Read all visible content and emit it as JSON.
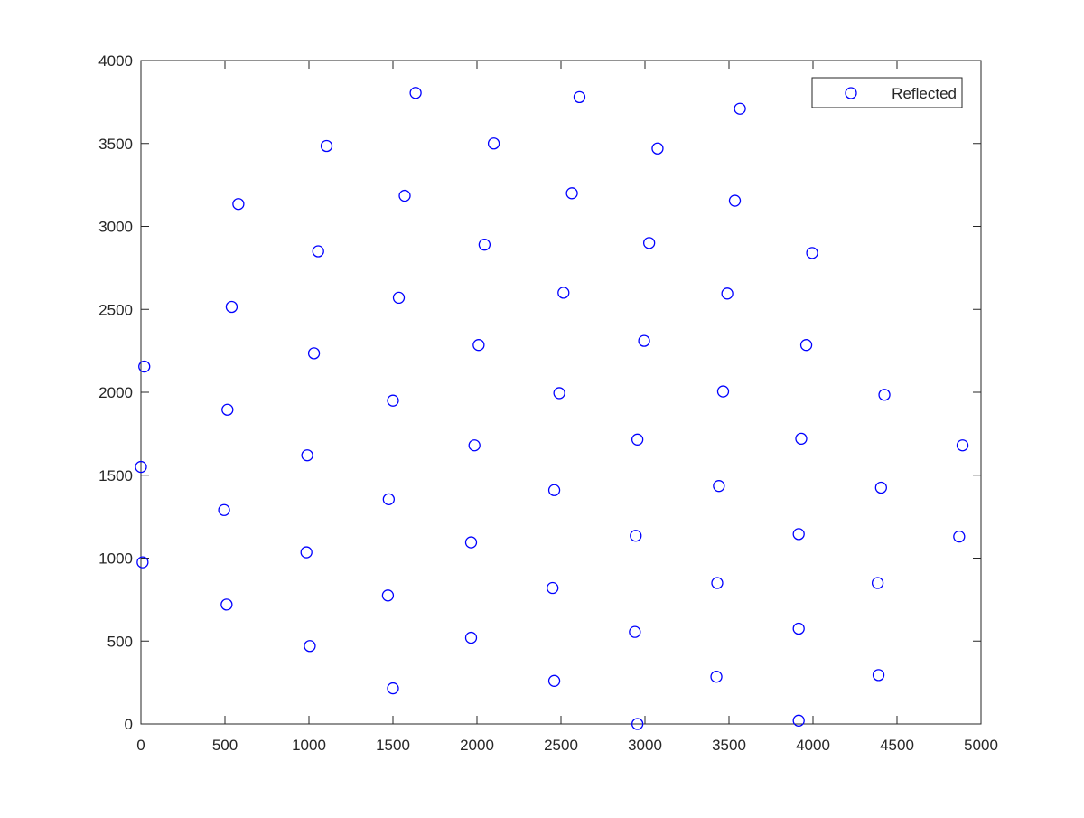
{
  "chart_data": {
    "type": "scatter",
    "title": "",
    "xlabel": "",
    "ylabel": "",
    "xlim": [
      0,
      5000
    ],
    "ylim": [
      0,
      4000
    ],
    "x_ticks": [
      0,
      500,
      1000,
      1500,
      2000,
      2500,
      3000,
      3500,
      4000,
      4500,
      5000
    ],
    "y_ticks": [
      0,
      500,
      1000,
      1500,
      2000,
      2500,
      3000,
      3500,
      4000
    ],
    "grid": false,
    "legend_position": "top-right",
    "marker": "open-circle",
    "colors": {
      "series": "#0000ff",
      "axes": "#262626",
      "background": "#ffffff"
    },
    "series": [
      {
        "name": "Reflected",
        "points": [
          [
            1635,
            3805
          ],
          [
            2610,
            3780
          ],
          [
            3565,
            3710
          ],
          [
            1105,
            3485
          ],
          [
            2100,
            3500
          ],
          [
            3075,
            3470
          ],
          [
            580,
            3135
          ],
          [
            1570,
            3185
          ],
          [
            2565,
            3200
          ],
          [
            3535,
            3155
          ],
          [
            1055,
            2850
          ],
          [
            2045,
            2890
          ],
          [
            3025,
            2900
          ],
          [
            3995,
            2840
          ],
          [
            540,
            2515
          ],
          [
            1535,
            2570
          ],
          [
            2515,
            2600
          ],
          [
            3490,
            2595
          ],
          [
            20,
            2155
          ],
          [
            1030,
            2235
          ],
          [
            2010,
            2285
          ],
          [
            2995,
            2310
          ],
          [
            3960,
            2285
          ],
          [
            515,
            1895
          ],
          [
            1500,
            1950
          ],
          [
            2490,
            1995
          ],
          [
            3465,
            2005
          ],
          [
            4425,
            1985
          ],
          [
            0,
            1550
          ],
          [
            990,
            1620
          ],
          [
            1985,
            1680
          ],
          [
            2955,
            1715
          ],
          [
            3930,
            1720
          ],
          [
            4890,
            1680
          ],
          [
            495,
            1290
          ],
          [
            1475,
            1355
          ],
          [
            2460,
            1410
          ],
          [
            3440,
            1435
          ],
          [
            4405,
            1425
          ],
          [
            10,
            975
          ],
          [
            985,
            1035
          ],
          [
            1965,
            1095
          ],
          [
            2945,
            1135
          ],
          [
            3915,
            1145
          ],
          [
            4870,
            1130
          ],
          [
            510,
            720
          ],
          [
            1470,
            775
          ],
          [
            2450,
            820
          ],
          [
            3430,
            850
          ],
          [
            4385,
            850
          ],
          [
            1005,
            470
          ],
          [
            1965,
            520
          ],
          [
            2940,
            555
          ],
          [
            3915,
            575
          ],
          [
            1500,
            215
          ],
          [
            2460,
            260
          ],
          [
            3425,
            285
          ],
          [
            4390,
            295
          ],
          [
            2955,
            0
          ],
          [
            3915,
            20
          ]
        ]
      }
    ]
  }
}
